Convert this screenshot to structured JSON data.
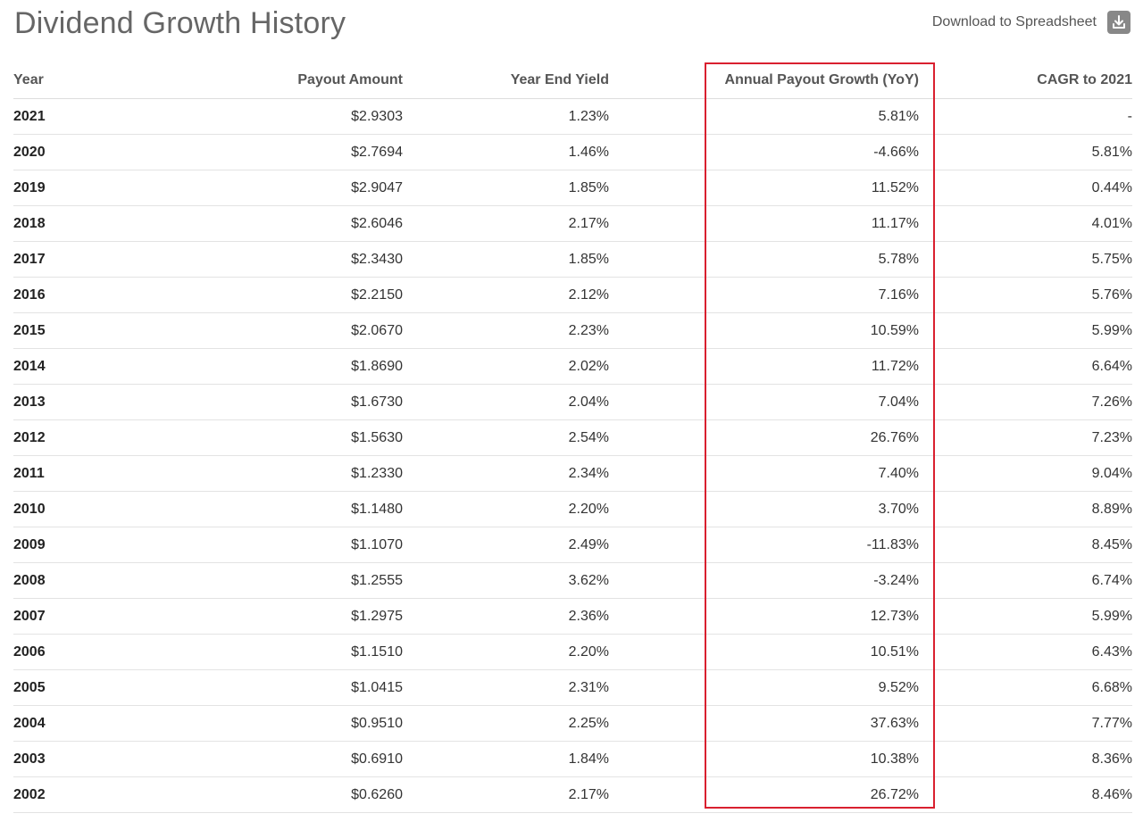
{
  "header": {
    "title": "Dividend Growth History",
    "download_label": "Download to Spreadsheet",
    "download_icon": "download-icon"
  },
  "table": {
    "columns": [
      "Year",
      "Payout Amount",
      "Year End Yield",
      "Annual Payout Growth (YoY)",
      "CAGR to 2021"
    ],
    "highlighted_column": "Annual Payout Growth (YoY)",
    "highlight_color": "#d9202f",
    "rows": [
      {
        "year": "2021",
        "payout": "$2.9303",
        "yield": "1.23%",
        "growth": "5.81%",
        "cagr": "-"
      },
      {
        "year": "2020",
        "payout": "$2.7694",
        "yield": "1.46%",
        "growth": "-4.66%",
        "cagr": "5.81%"
      },
      {
        "year": "2019",
        "payout": "$2.9047",
        "yield": "1.85%",
        "growth": "11.52%",
        "cagr": "0.44%"
      },
      {
        "year": "2018",
        "payout": "$2.6046",
        "yield": "2.17%",
        "growth": "11.17%",
        "cagr": "4.01%"
      },
      {
        "year": "2017",
        "payout": "$2.3430",
        "yield": "1.85%",
        "growth": "5.78%",
        "cagr": "5.75%"
      },
      {
        "year": "2016",
        "payout": "$2.2150",
        "yield": "2.12%",
        "growth": "7.16%",
        "cagr": "5.76%"
      },
      {
        "year": "2015",
        "payout": "$2.0670",
        "yield": "2.23%",
        "growth": "10.59%",
        "cagr": "5.99%"
      },
      {
        "year": "2014",
        "payout": "$1.8690",
        "yield": "2.02%",
        "growth": "11.72%",
        "cagr": "6.64%"
      },
      {
        "year": "2013",
        "payout": "$1.6730",
        "yield": "2.04%",
        "growth": "7.04%",
        "cagr": "7.26%"
      },
      {
        "year": "2012",
        "payout": "$1.5630",
        "yield": "2.54%",
        "growth": "26.76%",
        "cagr": "7.23%"
      },
      {
        "year": "2011",
        "payout": "$1.2330",
        "yield": "2.34%",
        "growth": "7.40%",
        "cagr": "9.04%"
      },
      {
        "year": "2010",
        "payout": "$1.1480",
        "yield": "2.20%",
        "growth": "3.70%",
        "cagr": "8.89%"
      },
      {
        "year": "2009",
        "payout": "$1.1070",
        "yield": "2.49%",
        "growth": "-11.83%",
        "cagr": "8.45%"
      },
      {
        "year": "2008",
        "payout": "$1.2555",
        "yield": "3.62%",
        "growth": "-3.24%",
        "cagr": "6.74%"
      },
      {
        "year": "2007",
        "payout": "$1.2975",
        "yield": "2.36%",
        "growth": "12.73%",
        "cagr": "5.99%"
      },
      {
        "year": "2006",
        "payout": "$1.1510",
        "yield": "2.20%",
        "growth": "10.51%",
        "cagr": "6.43%"
      },
      {
        "year": "2005",
        "payout": "$1.0415",
        "yield": "2.31%",
        "growth": "9.52%",
        "cagr": "6.68%"
      },
      {
        "year": "2004",
        "payout": "$0.9510",
        "yield": "2.25%",
        "growth": "37.63%",
        "cagr": "7.77%"
      },
      {
        "year": "2003",
        "payout": "$0.6910",
        "yield": "1.84%",
        "growth": "10.38%",
        "cagr": "8.36%"
      },
      {
        "year": "2002",
        "payout": "$0.6260",
        "yield": "2.17%",
        "growth": "26.72%",
        "cagr": "8.46%"
      }
    ]
  }
}
